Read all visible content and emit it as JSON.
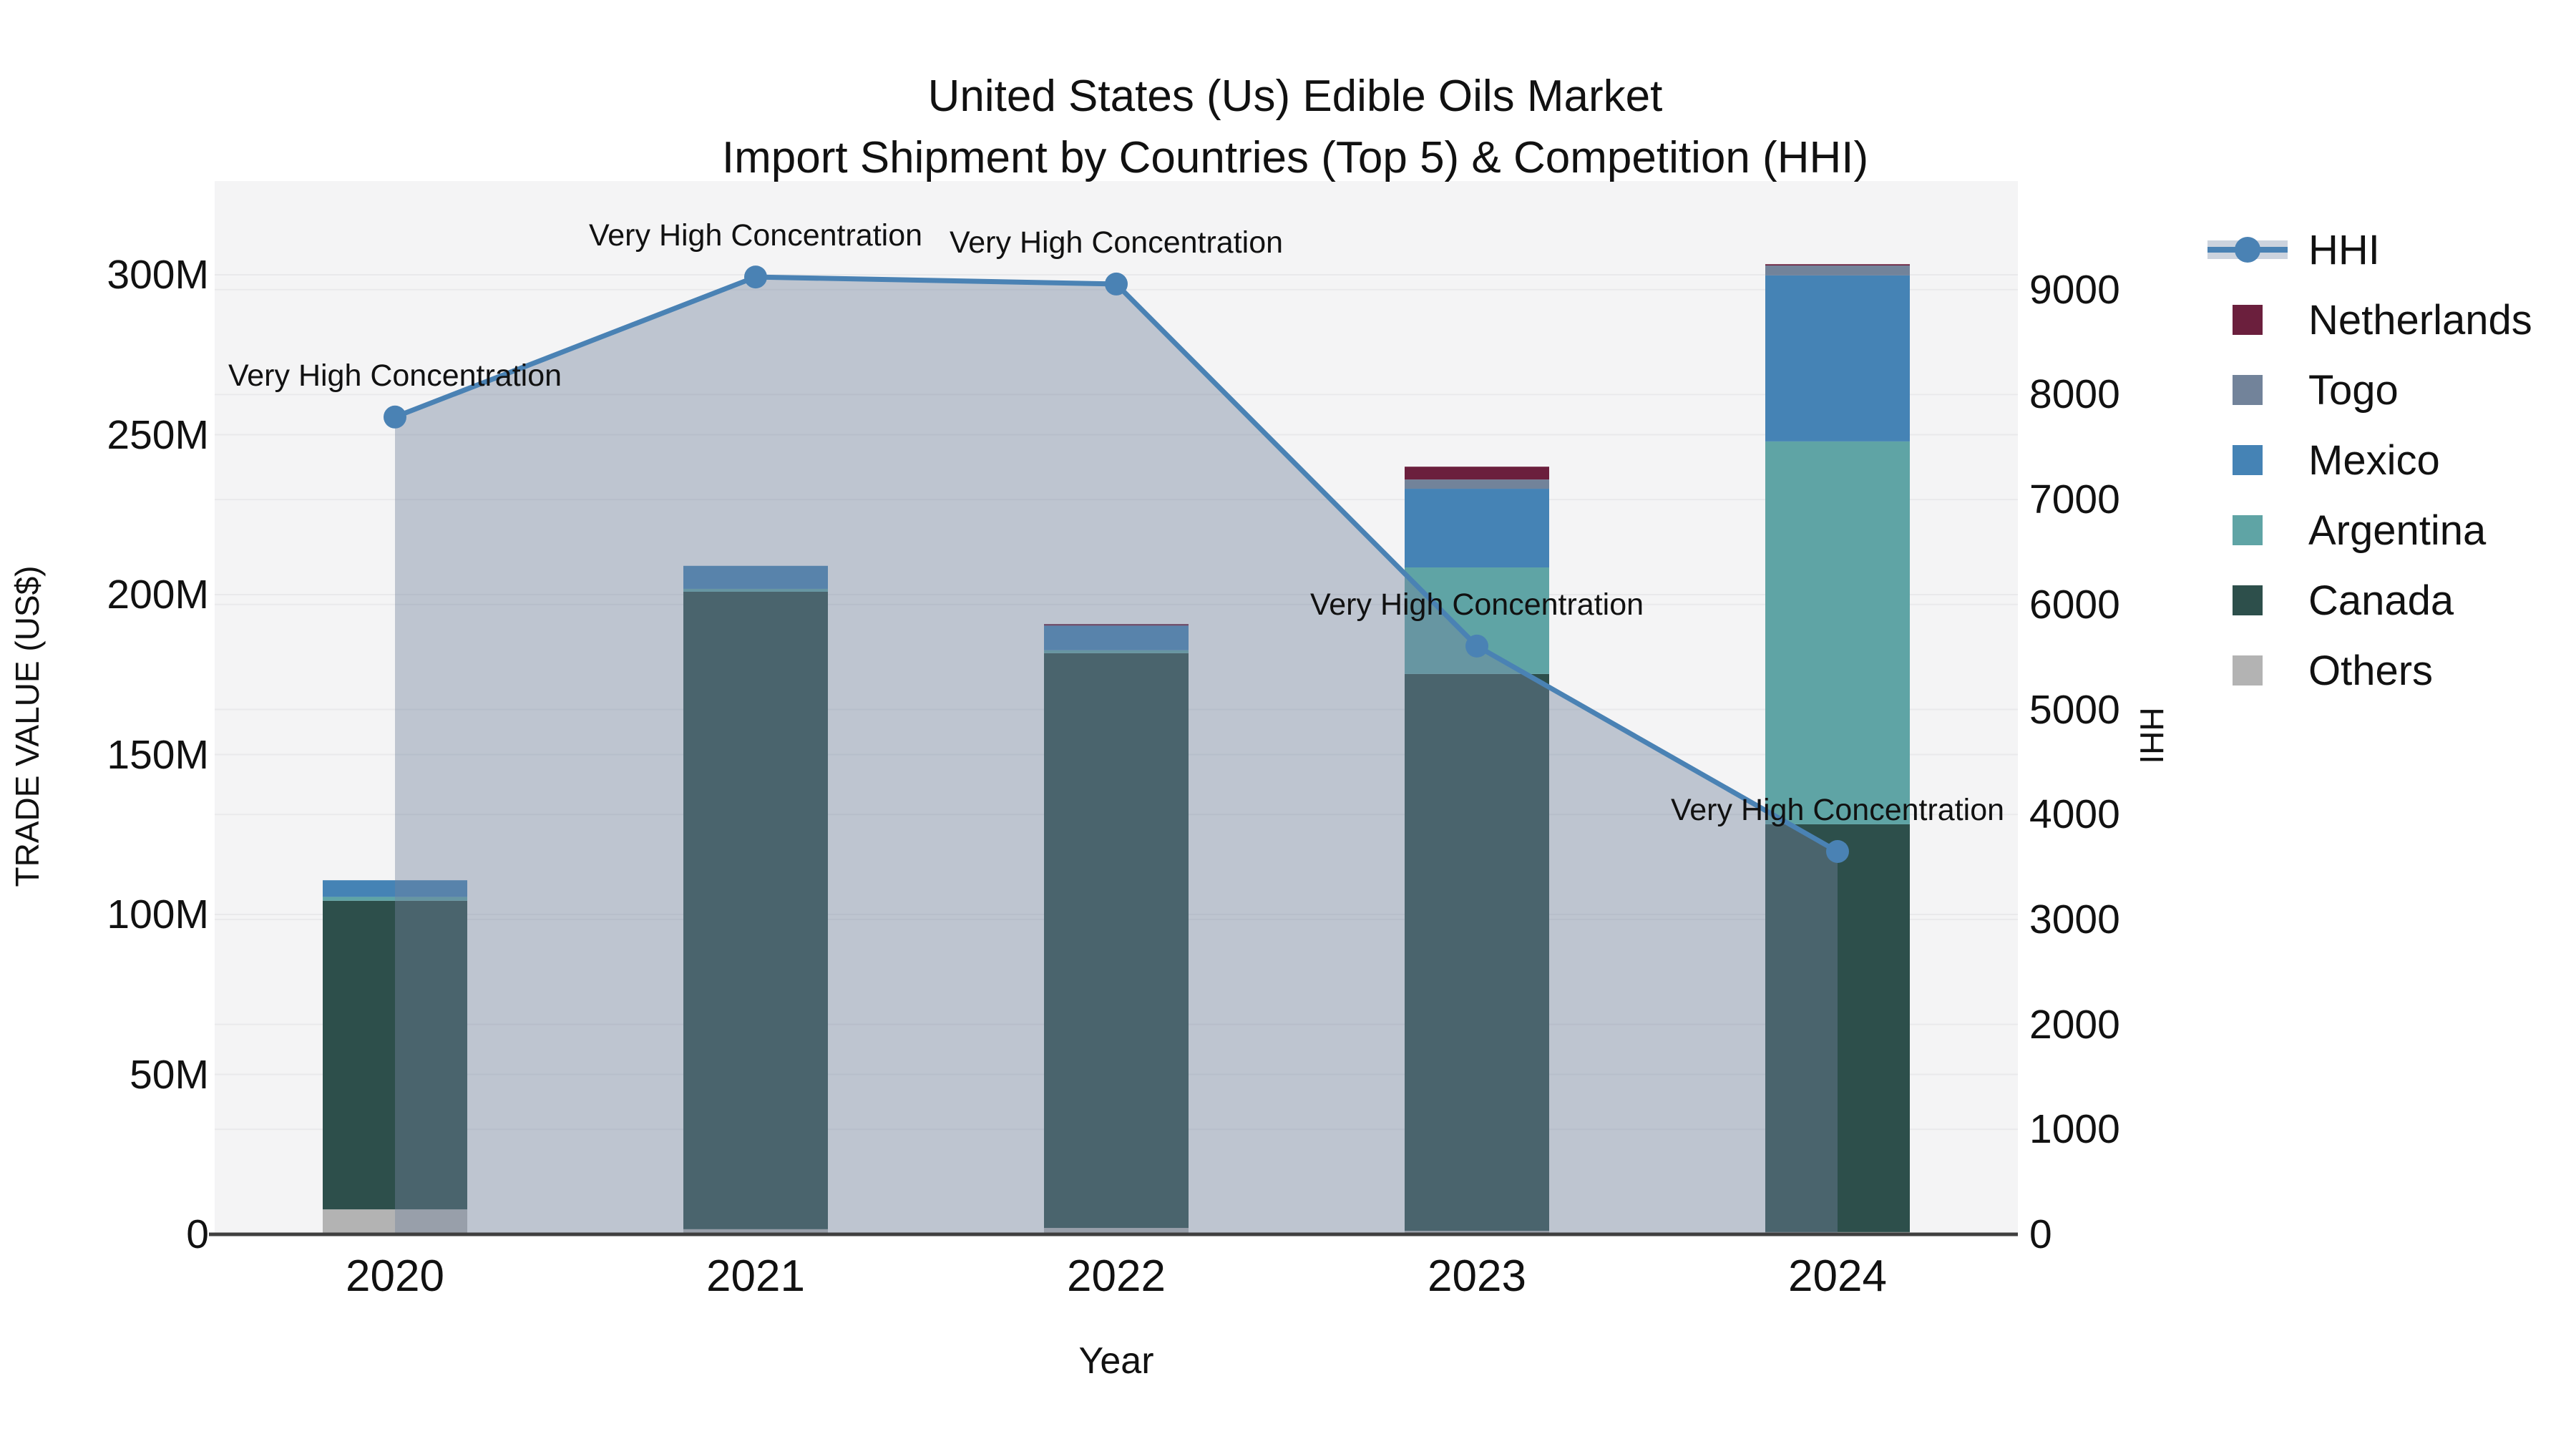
{
  "title": {
    "line1": "United States (Us) Edible Oils Market",
    "line2": "Import Shipment by Countries (Top 5) & Competition (HHI)"
  },
  "x_axis": {
    "label": "Year",
    "ticks": [
      "2020",
      "2021",
      "2022",
      "2023",
      "2024"
    ]
  },
  "y_left": {
    "label": "TRADE VALUE (US$)",
    "ticks": [
      "0",
      "50M",
      "100M",
      "150M",
      "200M",
      "250M",
      "300M"
    ]
  },
  "y_right": {
    "label": "HHI",
    "ticks": [
      "0",
      "1000",
      "2000",
      "3000",
      "4000",
      "5000",
      "6000",
      "7000",
      "8000",
      "9000"
    ]
  },
  "legend": {
    "items": [
      {
        "label": "HHI",
        "type": "line"
      },
      {
        "label": "Netherlands",
        "type": "swatch",
        "color": "#6b1f3d"
      },
      {
        "label": "Togo",
        "type": "swatch",
        "color": "#72839a"
      },
      {
        "label": "Mexico",
        "type": "swatch",
        "color": "#4583b5"
      },
      {
        "label": "Argentina",
        "type": "swatch",
        "color": "#5fa4a5"
      },
      {
        "label": "Canada",
        "type": "swatch",
        "color": "#2d4f4b"
      },
      {
        "label": "Others",
        "type": "swatch",
        "color": "#b3b3b3"
      }
    ]
  },
  "colors": {
    "hhi_line": "#4a82b4",
    "hhi_band": "#ccd3de",
    "area_fill": "#73829d",
    "area_fill_opacity": 0.42,
    "plot_bg": "#f4f4f5",
    "gridline": "#e9e9eb",
    "axis_line": "#3f3f3f",
    "text": "#111111"
  },
  "chart_data": {
    "type": "bar",
    "subtype": "stacked-bars-with-secondary-line",
    "categories": [
      "2020",
      "2021",
      "2022",
      "2023",
      "2024"
    ],
    "bar_value_unit": "USD millions (left axis, TRADE VALUE US$)",
    "series": [
      {
        "name": "Others",
        "color": "#b3b3b3",
        "values": [
          7.8,
          1.6,
          2.0,
          1.1,
          0.7
        ]
      },
      {
        "name": "Canada",
        "color": "#2d4f4b",
        "values": [
          96.5,
          199.3,
          179.7,
          174.1,
          127.5
        ]
      },
      {
        "name": "Argentina",
        "color": "#5fa4a5",
        "values": [
          1.2,
          0.9,
          0.9,
          33.3,
          119.7
        ]
      },
      {
        "name": "Mexico",
        "color": "#4583b5",
        "values": [
          5.2,
          7.2,
          7.7,
          24.6,
          51.9
        ]
      },
      {
        "name": "Togo",
        "color": "#72839a",
        "values": [
          0,
          0,
          0,
          2.9,
          3.1
        ]
      },
      {
        "name": "Netherlands",
        "color": "#6b1f3d",
        "values": [
          0,
          0,
          0.5,
          4.0,
          0.4
        ]
      }
    ],
    "bar_totals_musd": [
      110.7,
      209.0,
      190.8,
      240.0,
      303.3
    ],
    "line_series": {
      "name": "HHI",
      "axis": "right",
      "values": [
        7786,
        9120,
        9053,
        5604,
        3647
      ],
      "style": "line+markers+area-fill-to-zero"
    },
    "point_annotations": [
      "Very High Concentration",
      "Very High Concentration",
      "Very High Concentration",
      "Very High Concentration",
      "Very High Concentration"
    ],
    "title": "United States (Us) Edible Oils Market — Import Shipment by Countries (Top 5) & Competition (HHI)",
    "xlabel": "Year",
    "ylabel_left": "TRADE VALUE (US$)",
    "ylabel_right": "HHI",
    "ylim_left_musd": [
      0,
      329
    ],
    "ylim_right_hhi": [
      0,
      10030
    ],
    "grid": true,
    "legend_position": "right"
  }
}
